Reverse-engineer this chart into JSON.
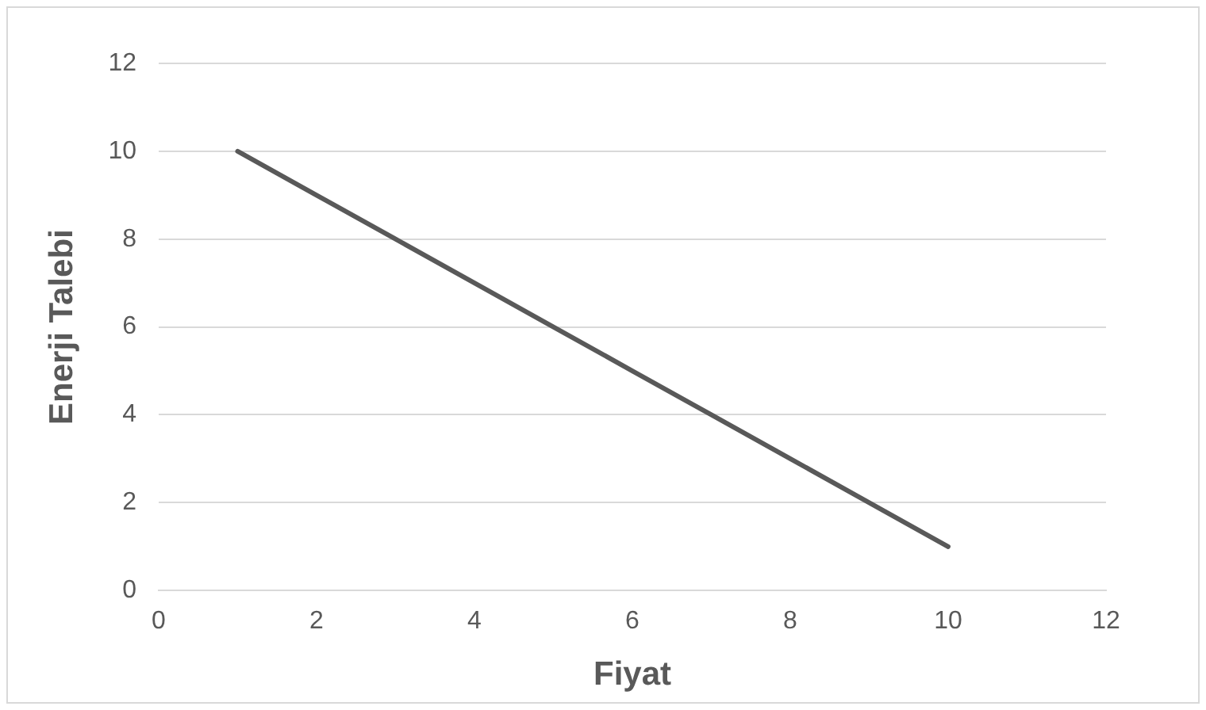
{
  "chart_data": {
    "type": "line",
    "xlabel": "Fiyat",
    "ylabel": "Enerji Talebi",
    "x": [
      1,
      2,
      3,
      4,
      5,
      6,
      7,
      8,
      9,
      10
    ],
    "series": [
      {
        "color": "#595959",
        "values": [
          10,
          9,
          8,
          7,
          6,
          5,
          4,
          3,
          2,
          1
        ]
      }
    ],
    "xlim": [
      0,
      12
    ],
    "xticks": [
      0,
      2,
      4,
      6,
      8,
      10,
      12
    ],
    "ylim": [
      0,
      12
    ],
    "yticks": [
      0,
      2,
      4,
      6,
      8,
      10,
      12
    ],
    "grid": "y",
    "legend": false,
    "marker": "none",
    "line_style": "solid"
  }
}
